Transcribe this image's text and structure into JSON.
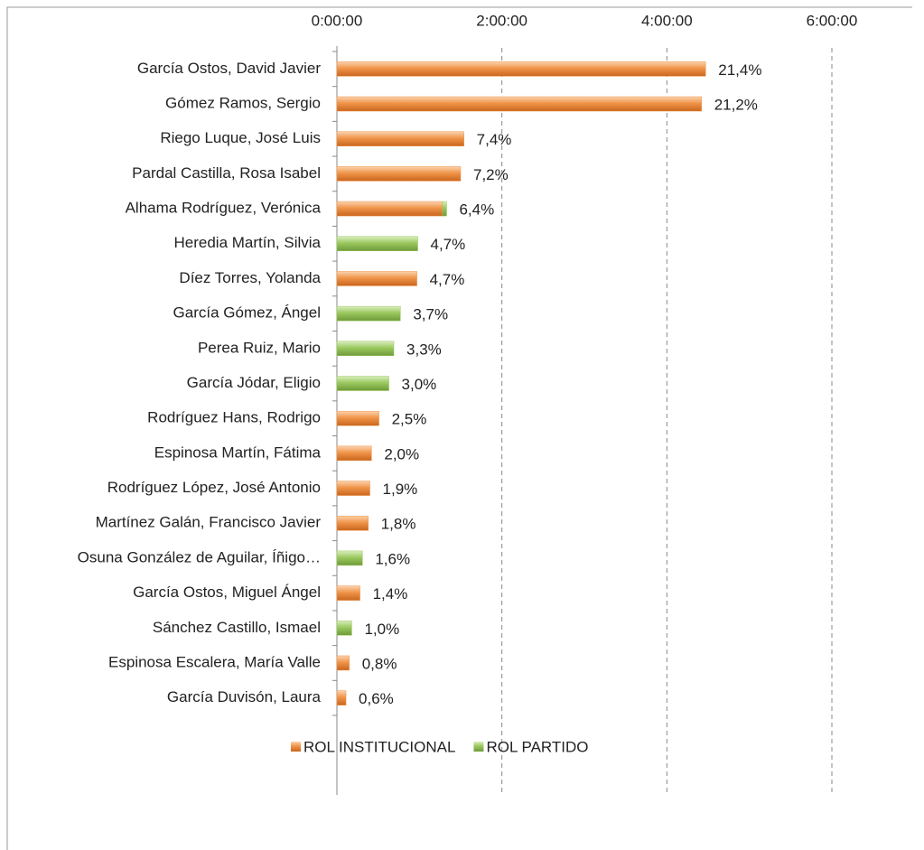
{
  "chart_data": {
    "type": "bar",
    "orientation": "horizontal",
    "stacked": true,
    "categories": [
      "García Ostos, David Javier",
      "Gómez Ramos, Sergio",
      "Riego Luque, José Luis",
      "Pardal Castilla, Rosa Isabel",
      "Alhama Rodríguez, Verónica",
      "Heredia Martín, Silvia",
      "Díez Torres, Yolanda",
      "García Gómez, Ángel",
      "Perea Ruiz, Mario",
      "García Jódar, Eligio",
      "Rodríguez Hans, Rodrigo",
      "Espinosa Martín, Fátima",
      "Rodríguez López, José Antonio",
      "Martínez Galán, Francisco Javier",
      "Osuna González de Aguilar, Íñigo…",
      "García Ostos, Miguel Ángel",
      "Sánchez Castillo, Ismael",
      "Espinosa Escalera, María Valle",
      "García Duvisón, Laura"
    ],
    "series": [
      {
        "name": "ROL INSTITUCIONAL",
        "color": "#f0954a",
        "values": [
          4.47,
          4.42,
          1.54,
          1.5,
          1.28,
          null,
          0.97,
          null,
          null,
          null,
          0.51,
          0.42,
          0.4,
          0.38,
          null,
          0.28,
          null,
          0.15,
          0.11
        ]
      },
      {
        "name": "ROL PARTIDO",
        "color": "#9bc95f",
        "values": [
          null,
          null,
          null,
          null,
          0.05,
          0.98,
          null,
          0.77,
          0.69,
          0.63,
          null,
          null,
          null,
          null,
          0.31,
          null,
          0.18,
          null,
          null
        ]
      }
    ],
    "percent_labels": [
      "21,4%",
      "21,2%",
      "7,4%",
      "7,2%",
      "6,4%",
      "4,7%",
      "4,7%",
      "3,7%",
      "3,3%",
      "3,0%",
      "2,5%",
      "2,0%",
      "1,9%",
      "1,8%",
      "1,6%",
      "1,4%",
      "1,0%",
      "0,8%",
      "0,6%"
    ],
    "xlim": [
      0,
      6.5
    ],
    "xticks": [
      {
        "value": 0,
        "label": "0:00:00"
      },
      {
        "value": 2,
        "label": "2:00:00"
      },
      {
        "value": 4,
        "label": "4:00:00"
      },
      {
        "value": 6,
        "label": "6:00:00"
      }
    ],
    "grid": true,
    "legend": "bottom"
  }
}
